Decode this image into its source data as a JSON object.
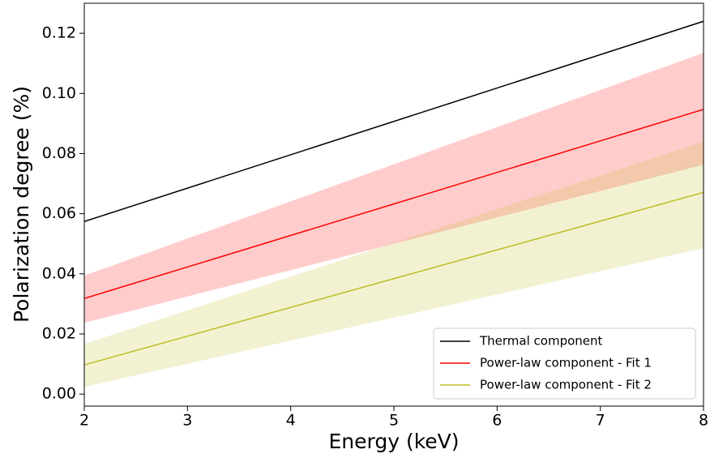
{
  "chart_data": {
    "type": "line",
    "xlabel": "Energy (keV)",
    "ylabel": "Polarization degree (%)",
    "x": [
      2,
      8
    ],
    "series": [
      {
        "name": "Thermal component",
        "color": "#000000",
        "values": [
          0.0574,
          0.124
        ]
      },
      {
        "name": "Power-law component - Fit 1",
        "color": "#ff0000",
        "values": [
          0.0318,
          0.0947
        ],
        "lower": [
          0.0237,
          0.0763
        ],
        "upper": [
          0.0394,
          0.1135
        ]
      },
      {
        "name": "Power-law component - Fit 2",
        "color": "#bcbd22",
        "values": [
          0.0097,
          0.0671
        ],
        "lower": [
          0.0024,
          0.0485
        ],
        "upper": [
          0.0167,
          0.0839
        ]
      }
    ],
    "xlim": [
      2,
      8
    ],
    "xticks": [
      2,
      3,
      4,
      5,
      6,
      7,
      8
    ],
    "ylim": [
      -0.004,
      0.13
    ],
    "yticks": [
      {
        "value": 0,
        "label": "0.00"
      },
      {
        "value": 0.02,
        "label": "0.02"
      },
      {
        "value": 0.04,
        "label": "0.04"
      },
      {
        "value": 0.06,
        "label": "0.06"
      },
      {
        "value": 0.08,
        "label": "0.08"
      },
      {
        "value": 0.1,
        "label": "0.10"
      },
      {
        "value": 0.12,
        "label": "0.12"
      }
    ],
    "legend": "lower right",
    "band_opacity": 0.2
  }
}
